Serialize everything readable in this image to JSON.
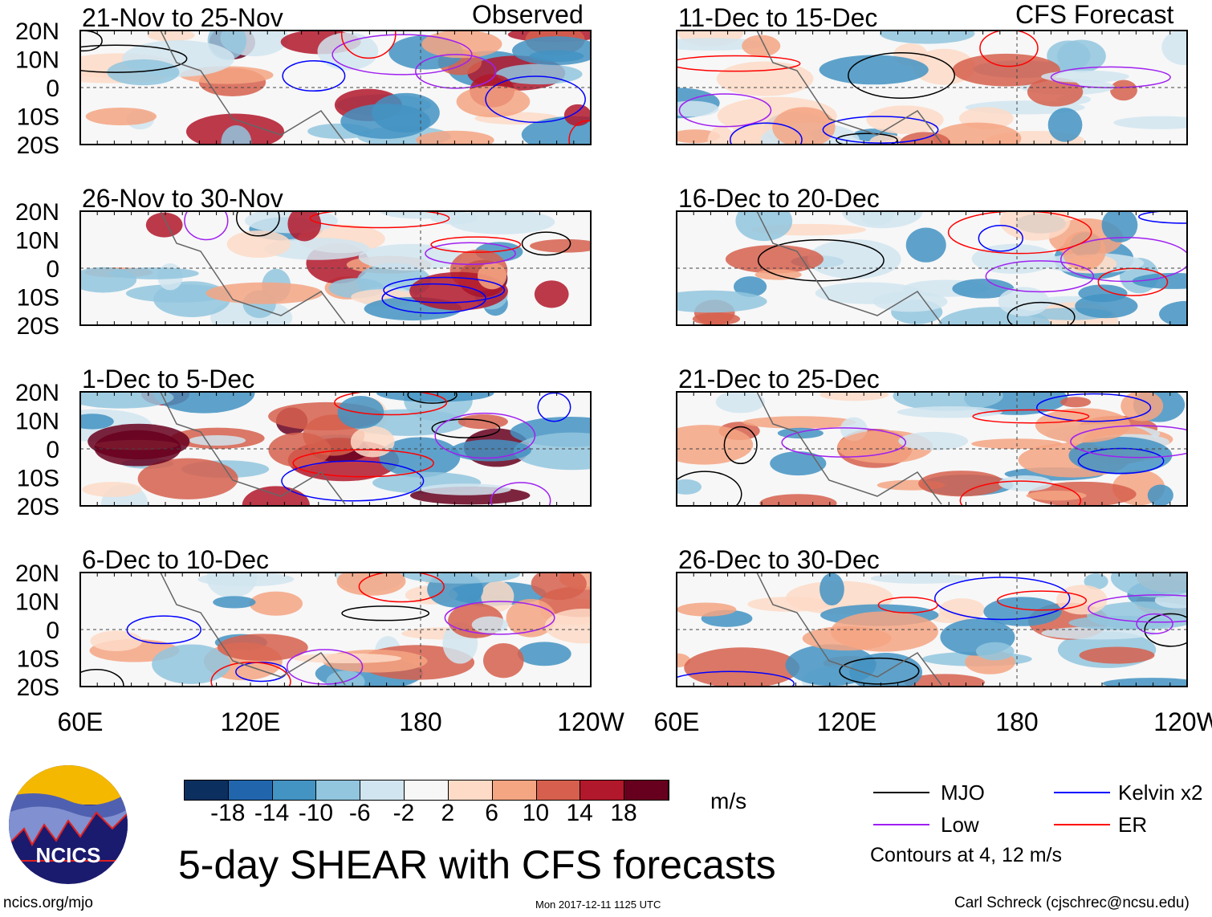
{
  "left_header": "Observed",
  "right_header": "CFS Forecast",
  "left_panels": [
    "21-Nov to 25-Nov",
    "26-Nov to 30-Nov",
    "1-Dec to 5-Dec",
    "6-Dec to 10-Dec"
  ],
  "right_panels": [
    "11-Dec to 15-Dec",
    "16-Dec to 20-Dec",
    "21-Dec to 25-Dec",
    "26-Dec to 30-Dec"
  ],
  "lat_labels": [
    "20N",
    "10N",
    "0",
    "10S",
    "20S"
  ],
  "lon_labels": [
    "60E",
    "120E",
    "180",
    "120W"
  ],
  "colorbar": {
    "colors": [
      "#0b2f5e",
      "#2166ac",
      "#4393c3",
      "#92c5de",
      "#d1e5f0",
      "#f7f7f7",
      "#fddbc7",
      "#f4a582",
      "#d6604d",
      "#b2182b",
      "#67001f"
    ],
    "labels": [
      "-18",
      "-14",
      "-10",
      "-6",
      "-2",
      "2",
      "6",
      "10",
      "14",
      "18"
    ],
    "units": "m/s"
  },
  "legend": {
    "items": [
      {
        "label": "MJO",
        "color": "#000000"
      },
      {
        "label": "Kelvin x2",
        "color": "#0000ff"
      },
      {
        "label": "Low",
        "color": "#a020f0"
      },
      {
        "label": "ER",
        "color": "#ff0000"
      }
    ],
    "note": "Contours at 4, 12 m/s"
  },
  "logo": {
    "text": "NCICS"
  },
  "title": "5-day SHEAR with CFS forecasts",
  "url": "ncics.org/mjo",
  "timestamp": "Mon 2017-12-11 1125 UTC",
  "credit": "Carl Schreck (cjschrec@ncsu.edu)"
}
